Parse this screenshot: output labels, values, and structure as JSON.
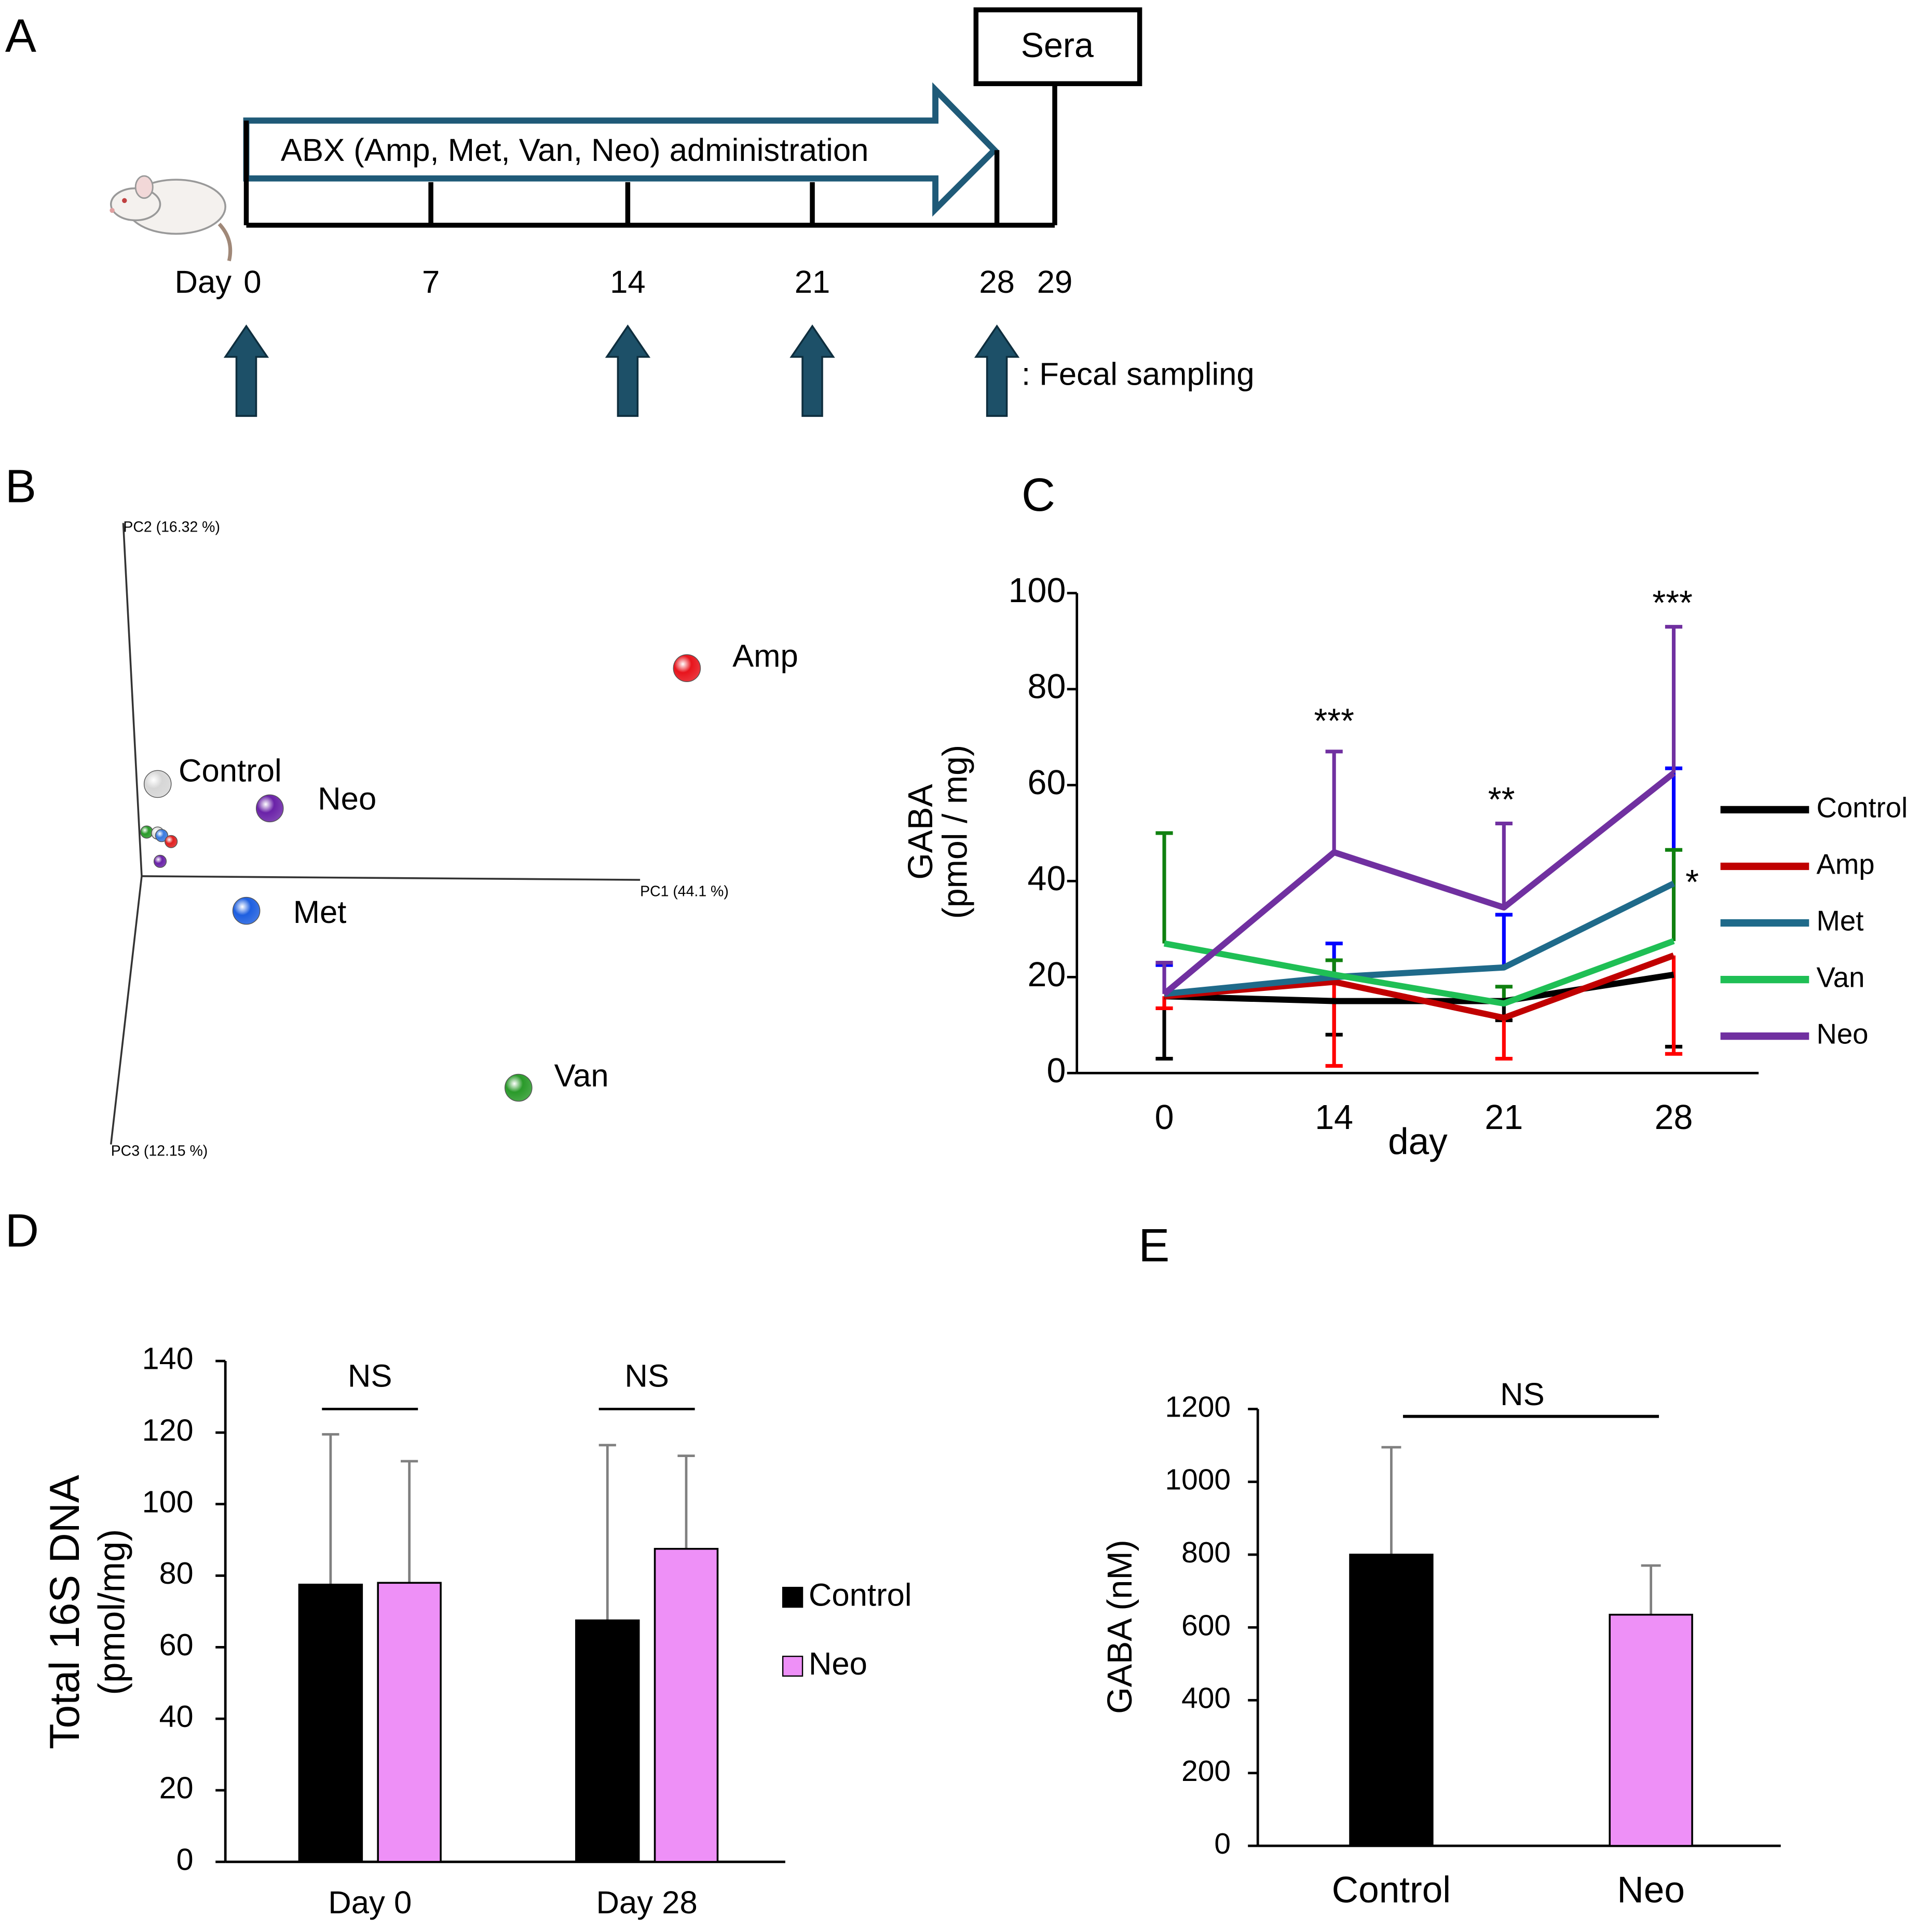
{
  "panel_labels": [
    "A",
    "B",
    "C",
    "D",
    "E"
  ],
  "timeline": {
    "start_label": "Day",
    "days": [
      0,
      7,
      14,
      21,
      28,
      29
    ],
    "treatment": "ABX (Amp, Met, Van, Neo) administration",
    "endpoint": "Sera",
    "sampling_days": [
      0,
      14,
      21,
      28
    ],
    "sampling_legend": ":  Fecal sampling"
  },
  "chart_data": [
    {
      "type": "scatter3d",
      "xlabel": "PC1 (44.1 %)",
      "ylabel": "PC2 (16.32 %)",
      "zlabel": "PC3 (12.15 %)",
      "points": [
        {
          "name": "Amp",
          "color": "#e8141c",
          "x": 109.4,
          "y": 58.9
        },
        {
          "name": "Control",
          "color": "#d6d6d6",
          "x": 3.2,
          "y": 26.1
        },
        {
          "name": "Neo",
          "color": "#6a22a8",
          "x": 25.7,
          "y": 19.2
        },
        {
          "name": "Met",
          "color": "#1e5fe0",
          "x": 21.0,
          "y": -9.8
        },
        {
          "name": "Van",
          "color": "#2a9a2a",
          "x": 75.6,
          "y": -59.9
        },
        {
          "name": null,
          "color": "#2a9a2a",
          "x": 1.0,
          "y": 12.5
        },
        {
          "name": null,
          "color": "#dddddd",
          "x": 3.2,
          "y": 12.2
        },
        {
          "name": null,
          "color": "#3a7be0",
          "x": 4.0,
          "y": 11.5
        },
        {
          "name": null,
          "color": "#e02020",
          "x": 5.9,
          "y": 9.8
        },
        {
          "name": null,
          "color": "#6a22a8",
          "x": 3.7,
          "y": 4.2
        }
      ]
    },
    {
      "type": "line",
      "categories": [
        "0",
        "14",
        "21",
        "28"
      ],
      "xlabel": "day",
      "ylabel": [
        "GABA",
        "(pmol / mg)"
      ],
      "ylim": [
        0,
        100
      ],
      "yticks": [
        0,
        20,
        40,
        60,
        80,
        100
      ],
      "annotations": [
        "***",
        "**",
        "***",
        "*"
      ],
      "series": [
        {
          "name": "Control",
          "color": "#000000",
          "error_color": "#000000",
          "error_direction": "down",
          "values": [
            16,
            15,
            15,
            20.5
          ],
          "errors": [
            13,
            7,
            4,
            15
          ]
        },
        {
          "name": "Amp",
          "color": "#c00000",
          "error_color": "#ff0000",
          "error_direction": "down",
          "values": [
            16,
            19,
            11.5,
            24.5
          ],
          "errors": [
            2.5,
            17.5,
            8.5,
            20.5
          ]
        },
        {
          "name": "Met",
          "color": "#1f6a8a",
          "error_color": "#0000ff",
          "error_direction": "up",
          "values": [
            16.5,
            20,
            22,
            39.5
          ],
          "errors": [
            6,
            7,
            11,
            24
          ]
        },
        {
          "name": "Van",
          "color": "#1fbf55",
          "error_color": "#108010",
          "error_direction": "up",
          "values": [
            27,
            20.5,
            14.5,
            27.5
          ],
          "errors": [
            23,
            3,
            3.5,
            19
          ]
        },
        {
          "name": "Neo",
          "color": "#7030a0",
          "error_color": "#7030a0",
          "error_direction": "up",
          "values": [
            16.5,
            46,
            34.5,
            62.5
          ],
          "errors": [
            6.5,
            21,
            17.5,
            30.5
          ]
        }
      ]
    },
    {
      "type": "bar",
      "categories": [
        "Day 0",
        "Day 28"
      ],
      "ylabel": [
        "Total 16S DNA",
        "(pmol/mg)"
      ],
      "ylim": [
        0,
        140
      ],
      "yticks": [
        0,
        20,
        40,
        60,
        80,
        100,
        120,
        140
      ],
      "annotations": [
        "NS",
        "NS"
      ],
      "error_color": "#808080",
      "series": [
        {
          "name": "Control",
          "color": "#000000",
          "values": [
            77.5,
            67.5
          ],
          "errors": [
            42,
            49
          ]
        },
        {
          "name": "Neo",
          "color": "#ee90f7",
          "values": [
            78,
            87.5
          ],
          "errors": [
            34,
            26
          ]
        }
      ]
    },
    {
      "type": "bar",
      "categories": [
        "Control",
        "Neo"
      ],
      "ylabel": "GABA (nM)",
      "ylim": [
        0,
        1200
      ],
      "yticks": [
        0,
        200,
        400,
        600,
        800,
        1000,
        1200
      ],
      "annotations": [
        "NS"
      ],
      "error_color": "#808080",
      "values": [
        800,
        635
      ],
      "errors": [
        295,
        135
      ],
      "colors": [
        "#000000",
        "#ee90f7"
      ]
    }
  ]
}
